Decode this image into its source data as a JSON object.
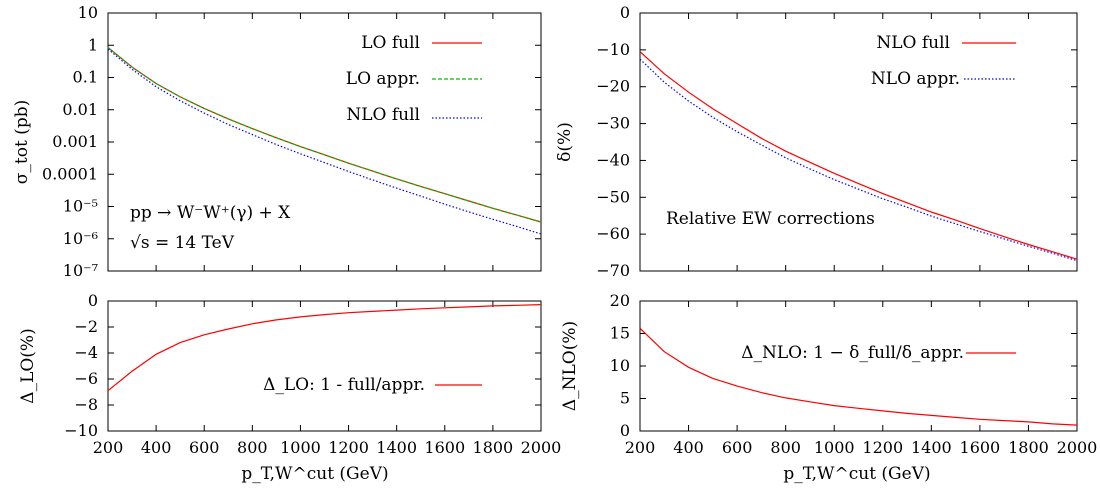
{
  "colors": {
    "lo_full": "#ff0000",
    "lo_appr": "#00c000",
    "nlo_full": "#0000ff",
    "nlo_appr": "#0000ff",
    "axis": "#000000"
  },
  "annotations": {
    "process": "pp → W⁻W⁺(γ) + X",
    "energy": "√s = 14 TeV",
    "relative": "Relative EW corrections"
  },
  "xaxis_label": "p_T,W^cut (GeV)",
  "chart_data": [
    {
      "id": "sigma",
      "type": "line",
      "ylabel": "σ_tot (pb)",
      "yscale": "log",
      "ylim": [
        1e-07,
        10
      ],
      "xlim": [
        200,
        2000
      ],
      "yticks": [
        "10",
        "1",
        "0.1",
        "0.01",
        "0.001",
        "0.0001",
        "10⁻⁵",
        "10⁻⁶",
        "10⁻⁷"
      ],
      "xticks": [],
      "x": [
        200,
        300,
        400,
        500,
        600,
        700,
        800,
        900,
        1000,
        1100,
        1200,
        1300,
        1400,
        1500,
        1600,
        1700,
        1800,
        1900,
        2000
      ],
      "series": [
        {
          "name": "LO full",
          "style": "solid",
          "color": "#ff0000",
          "values": [
            0.85,
            0.21,
            0.065,
            0.025,
            0.011,
            0.0052,
            0.0026,
            0.00135,
            0.00072,
            0.0004,
            0.00022,
            0.000125,
            7.2e-05,
            4.2e-05,
            2.5e-05,
            1.48e-05,
            8.8e-06,
            5.4e-06,
            3.3e-06
          ]
        },
        {
          "name": "LO appr.",
          "style": "dashed",
          "color": "#00c000",
          "values": [
            0.85,
            0.21,
            0.065,
            0.025,
            0.011,
            0.0052,
            0.0026,
            0.00135,
            0.00072,
            0.0004,
            0.00022,
            0.000125,
            7.2e-05,
            4.2e-05,
            2.5e-05,
            1.48e-05,
            8.8e-06,
            5.4e-06,
            3.3e-06
          ]
        },
        {
          "name": "NLO full",
          "style": "dotted",
          "color": "#0000ff",
          "values": [
            0.76,
            0.18,
            0.052,
            0.019,
            0.0079,
            0.0035,
            0.0017,
            0.00083,
            0.00043,
            0.00023,
            0.000122,
            6.7e-05,
            3.7e-05,
            2.1e-05,
            1.18e-05,
            6.8e-06,
            4e-06,
            2.4e-06,
            1.4e-06
          ]
        }
      ],
      "legend": "top-right"
    },
    {
      "id": "delta",
      "type": "line",
      "ylabel": "δ(%)",
      "ylim": [
        -70,
        0
      ],
      "xlim": [
        200,
        2000
      ],
      "yticks": [
        "0",
        "−10",
        "−20",
        "−30",
        "−40",
        "−50",
        "−60",
        "−70"
      ],
      "xticks": [],
      "x": [
        200,
        300,
        400,
        500,
        600,
        700,
        800,
        900,
        1000,
        1100,
        1200,
        1300,
        1400,
        1500,
        1600,
        1700,
        1800,
        1900,
        2000
      ],
      "series": [
        {
          "name": "NLO full",
          "style": "solid",
          "color": "#ff0000",
          "values": [
            -10.5,
            -16.5,
            -21.5,
            -26,
            -30,
            -34,
            -37.5,
            -40.5,
            -43.5,
            -46.3,
            -49,
            -51.5,
            -54,
            -56.2,
            -58.5,
            -60.7,
            -62.8,
            -64.8,
            -66.8
          ]
        },
        {
          "name": "NLO appr.",
          "style": "dotted",
          "color": "#0000ff",
          "values": [
            -12.5,
            -18.8,
            -23.9,
            -28.3,
            -32.2,
            -35.8,
            -39.3,
            -42.3,
            -45.2,
            -47.8,
            -50.4,
            -52.7,
            -55.1,
            -57.2,
            -59.3,
            -61.3,
            -63.3,
            -65.2,
            -67.2
          ]
        }
      ],
      "legend": "top-right"
    },
    {
      "id": "delta_lo",
      "type": "line",
      "ylabel": "Δ_LO(%)",
      "ylim": [
        -10,
        0
      ],
      "xlim": [
        200,
        2000
      ],
      "yticks": [
        "0",
        "−2",
        "−4",
        "−6",
        "−8",
        "−10"
      ],
      "xticks": [
        "200",
        "400",
        "600",
        "800",
        "1000",
        "1200",
        "1400",
        "1600",
        "1800",
        "2000"
      ],
      "x": [
        200,
        300,
        400,
        500,
        600,
        700,
        800,
        900,
        1000,
        1100,
        1200,
        1300,
        1400,
        1500,
        1600,
        1700,
        1800,
        1900,
        2000
      ],
      "series": [
        {
          "name": "Δ_LO: 1 - full/appr.",
          "style": "solid",
          "color": "#ff0000",
          "values": [
            -6.9,
            -5.4,
            -4.1,
            -3.2,
            -2.6,
            -2.15,
            -1.75,
            -1.45,
            -1.22,
            -1.05,
            -0.9,
            -0.8,
            -0.7,
            -0.6,
            -0.52,
            -0.45,
            -0.38,
            -0.33,
            -0.28
          ]
        }
      ],
      "legend": "right"
    },
    {
      "id": "delta_nlo",
      "type": "line",
      "ylabel": "Δ_NLO(%)",
      "ylim": [
        0,
        20
      ],
      "xlim": [
        200,
        2000
      ],
      "yticks": [
        "20",
        "15",
        "10",
        "5",
        "0"
      ],
      "xticks": [
        "200",
        "400",
        "600",
        "800",
        "1000",
        "1200",
        "1400",
        "1600",
        "1800",
        "2000"
      ],
      "x": [
        200,
        300,
        400,
        500,
        600,
        700,
        800,
        900,
        1000,
        1100,
        1200,
        1300,
        1400,
        1500,
        1600,
        1700,
        1800,
        1900,
        2000
      ],
      "series": [
        {
          "name": "Δ_NLO: 1 − δ_full/δ_appr.",
          "style": "solid",
          "color": "#ff0000",
          "values": [
            15.8,
            12.2,
            9.8,
            8.1,
            6.9,
            5.9,
            5.1,
            4.5,
            3.9,
            3.5,
            3.1,
            2.7,
            2.4,
            2.1,
            1.8,
            1.6,
            1.4,
            1.1,
            0.9
          ]
        }
      ],
      "legend": "top-right"
    }
  ]
}
